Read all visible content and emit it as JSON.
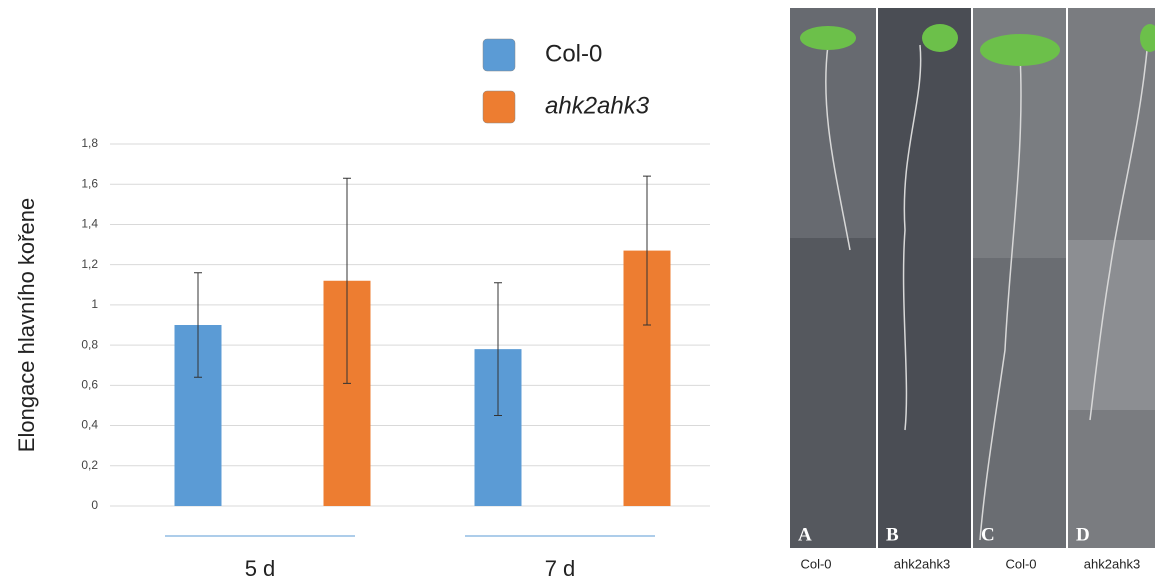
{
  "chart_data": {
    "type": "bar",
    "y_label": "Elongace hlavního kořene",
    "categories": [
      "5 d",
      "7 d"
    ],
    "series": [
      {
        "name": "Col-0",
        "color": "#5b9bd5",
        "values": [
          0.9,
          0.78
        ],
        "errors": [
          0.26,
          0.33
        ]
      },
      {
        "name": "ahk2ahk3",
        "color": "#ed7d31",
        "values": [
          1.12,
          1.27
        ],
        "errors": [
          0.51,
          0.37
        ]
      }
    ],
    "ylim": [
      0,
      1.8
    ],
    "yticks": [
      0,
      {
        "value": 0.2,
        "label": "0,2"
      },
      {
        "value": 0.4,
        "label": "0,4"
      },
      {
        "value": 0.6,
        "label": "0,6"
      },
      {
        "value": 0.8,
        "label": "0,8"
      },
      1,
      {
        "value": 1.2,
        "label": "1,2"
      },
      {
        "value": 1.4,
        "label": "1,4"
      },
      {
        "value": 1.6,
        "label": "1,6"
      },
      {
        "value": 1.8,
        "label": "1,8"
      }
    ],
    "grid": true
  },
  "photo_panels": [
    {
      "letter": "A",
      "label": "Col-0"
    },
    {
      "letter": "B",
      "label": "ahk2ahk3"
    },
    {
      "letter": "C",
      "label": "Col-0"
    },
    {
      "letter": "D",
      "label": "ahk2ahk3"
    }
  ]
}
